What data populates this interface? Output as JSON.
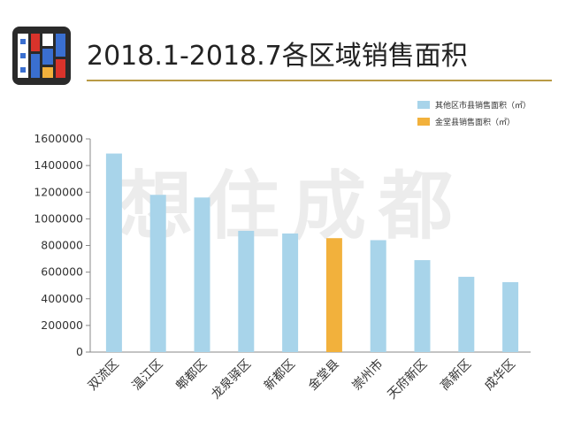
{
  "header": {
    "title": "2018.1-2018.7各区域销售面积"
  },
  "watermark": "想住成都",
  "colors": {
    "other": "#a8d4ea",
    "jintang": "#f2b13c",
    "title_rule": "#b99a45",
    "axis": "#888888"
  },
  "chart_data": {
    "type": "bar",
    "title": "2018.1-2018.7各区域销售面积",
    "xlabel": "",
    "ylabel": "",
    "categories": [
      "双流区",
      "温江区",
      "郫都区",
      "龙泉驿区",
      "新都区",
      "金堂县",
      "崇州市",
      "天府新区",
      "高新区",
      "成华区"
    ],
    "values": [
      1490000,
      1180000,
      1160000,
      910000,
      890000,
      855000,
      840000,
      690000,
      565000,
      525000
    ],
    "series": [
      {
        "name": "其他区市县销售面积（㎡）",
        "color": "#a8d4ea"
      },
      {
        "name": "金堂县销售面积（㎡）",
        "color": "#f2b13c"
      }
    ],
    "highlight_index": 5,
    "ylim": [
      0,
      1600000
    ],
    "yticks": [
      0,
      200000,
      400000,
      600000,
      800000,
      1000000,
      1200000,
      1400000,
      1600000
    ],
    "ytick_labels": [
      "0",
      "200000",
      "400000",
      "600000",
      "800000",
      "1000000",
      "1200000",
      "1400000",
      "1600000"
    ],
    "grid": false,
    "legend": "top-right"
  }
}
